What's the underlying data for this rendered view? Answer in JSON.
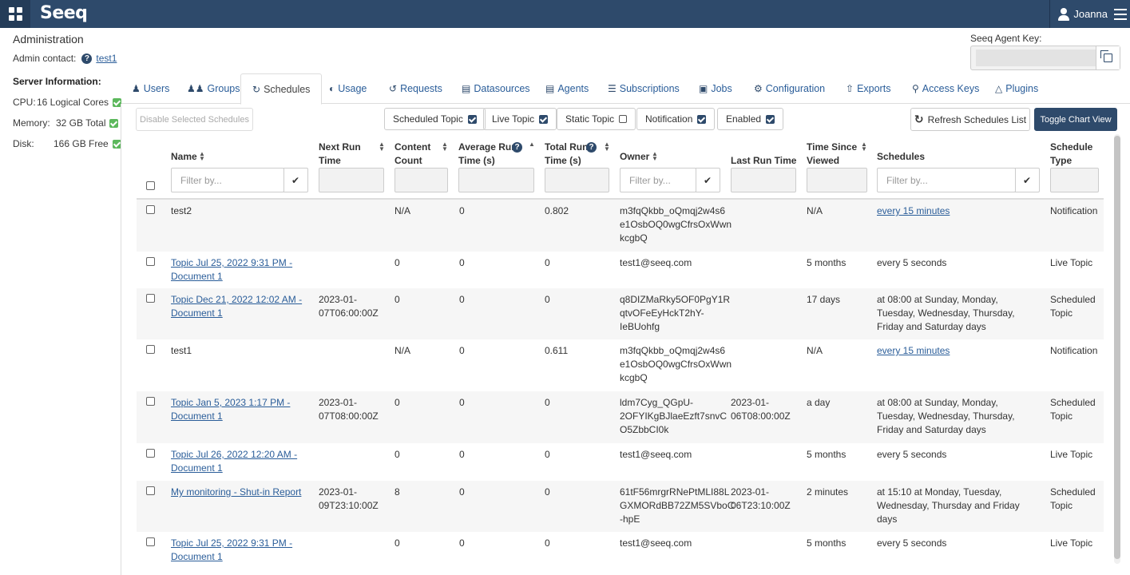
{
  "header": {
    "app_name": "Seeq",
    "user_name": "Joanna"
  },
  "admin": {
    "title": "Administration",
    "contact_label": "Admin contact:",
    "contact_link": "test1"
  },
  "server_info": {
    "title": "Server Information:",
    "cpu_label": "CPU:",
    "cpu_value": "16 Logical Cores",
    "memory_label": "Memory:",
    "memory_value": "32 GB Total",
    "disk_label": "Disk:",
    "disk_value": "166 GB Free"
  },
  "agent_key": {
    "label": "Seeq Agent Key:",
    "value": ""
  },
  "tabs": [
    {
      "label": "Users",
      "icon": "user-icon"
    },
    {
      "label": "Groups",
      "icon": "users-icon"
    },
    {
      "label": "Schedules",
      "icon": "refresh-icon"
    },
    {
      "label": "Usage",
      "icon": "dashboard-icon"
    },
    {
      "label": "Requests",
      "icon": "history-icon"
    },
    {
      "label": "Datasources",
      "icon": "database-icon"
    },
    {
      "label": "Agents",
      "icon": "server-icon"
    },
    {
      "label": "Subscriptions",
      "icon": "list-icon"
    },
    {
      "label": "Jobs",
      "icon": "briefcase-icon"
    },
    {
      "label": "Configuration",
      "icon": "gears-icon"
    },
    {
      "label": "Exports",
      "icon": "export-icon"
    },
    {
      "label": "Access Keys",
      "icon": "key-icon"
    },
    {
      "label": "Plugins",
      "icon": "flask-icon"
    }
  ],
  "toolbar": {
    "disable_label": "Disable Selected Schedules",
    "filters": [
      {
        "label": "Scheduled Topic",
        "checked": true
      },
      {
        "label": "Live Topic",
        "checked": true
      },
      {
        "label": "Static Topic",
        "checked": false
      },
      {
        "label": "Notification",
        "checked": true
      },
      {
        "label": "Enabled",
        "checked": true
      }
    ],
    "refresh_label": "Refresh Schedules List",
    "toggle_label": "Toggle Chart View"
  },
  "columns": {
    "name": "Name",
    "next_run_1": "Next Run",
    "next_run_2": "Time",
    "content_1": "Content",
    "content_2": "Count",
    "avg_1": "Average Run",
    "avg_2": "Time (s)",
    "total_1": "Total Run",
    "total_2": "Time (s)",
    "owner": "Owner",
    "last_run": "Last Run Time",
    "since_1": "Time Since",
    "since_2": "Viewed",
    "schedules": "Schedules",
    "type_1": "Schedule",
    "type_2": "Type",
    "filter_placeholder": "Filter by..."
  },
  "rows": [
    {
      "name": "test2",
      "name_link": false,
      "next_run": "",
      "content": "N/A",
      "avg": "0",
      "total": "0.802",
      "owner": "m3fqQkbb_oQmqj2w4s6 e1OsbOQ0wgCfrsOxWwn kcgbQ",
      "last_run": "",
      "since": "N/A",
      "schedule": "every 15 minutes",
      "schedule_link": true,
      "type": "Notification"
    },
    {
      "name": "Topic Jul 25, 2022 9:31 PM - Document 1",
      "name_link": true,
      "next_run": "",
      "content": "0",
      "avg": "0",
      "total": "0",
      "owner": "test1@seeq.com",
      "last_run": "",
      "since": "5 months",
      "schedule": "every 5 seconds",
      "schedule_link": false,
      "type": "Live Topic"
    },
    {
      "name": "Topic Dec 21, 2022 12:02 AM - Document 1",
      "name_link": true,
      "next_run": "2023-01-07T06:00:00Z",
      "content": "0",
      "avg": "0",
      "total": "0",
      "owner": "q8DIZMaRky5OF0PgY1R qtvOFeEyHckT2hY-IeBUohfg",
      "last_run": "",
      "since": "17 days",
      "schedule": "at 08:00 at Sunday, Monday, Tuesday, Wednesday, Thursday, Friday and Saturday days",
      "schedule_link": false,
      "type": "Scheduled Topic"
    },
    {
      "name": "test1",
      "name_link": false,
      "next_run": "",
      "content": "N/A",
      "avg": "0",
      "total": "0.611",
      "owner": "m3fqQkbb_oQmqj2w4s6 e1OsbOQ0wgCfrsOxWwn kcgbQ",
      "last_run": "",
      "since": "N/A",
      "schedule": "every 15 minutes",
      "schedule_link": true,
      "type": "Notification"
    },
    {
      "name": "Topic Jan 5, 2023 1:17 PM - Document 1",
      "name_link": true,
      "next_run": "2023-01-07T08:00:00Z",
      "content": "0",
      "avg": "0",
      "total": "0",
      "owner": "ldm7Cyg_QGpU-2OFYIKgBJlaeEzft7snvC O5ZbbCI0k",
      "last_run": "2023-01-06T08:00:00Z",
      "since": "a day",
      "schedule": "at 08:00 at Sunday, Monday, Tuesday, Wednesday, Thursday, Friday and Saturday days",
      "schedule_link": false,
      "type": "Scheduled Topic"
    },
    {
      "name": "Topic Jul 26, 2022 12:20 AM - Document 1",
      "name_link": true,
      "next_run": "",
      "content": "0",
      "avg": "0",
      "total": "0",
      "owner": "test1@seeq.com",
      "last_run": "",
      "since": "5 months",
      "schedule": "every 5 seconds",
      "schedule_link": false,
      "type": "Live Topic"
    },
    {
      "name": "My monitoring - Shut-in Report",
      "name_link": true,
      "next_run": "2023-01-09T23:10:00Z",
      "content": "8",
      "avg": "0",
      "total": "0",
      "owner": "61tF56mrgrRNePtMLI88L GXMORdBB72ZM5SVboC -hpE",
      "last_run": "2023-01-06T23:10:00Z",
      "since": "2 minutes",
      "schedule": "at 15:10 at Monday, Tuesday, Wednesday, Thursday and Friday days",
      "schedule_link": false,
      "type": "Scheduled Topic"
    },
    {
      "name": "Topic Jul 25, 2022 9:31 PM - Document 1",
      "name_link": true,
      "next_run": "",
      "content": "0",
      "avg": "0",
      "total": "0",
      "owner": "test1@seeq.com",
      "last_run": "",
      "since": "5 months",
      "schedule": "every 5 seconds",
      "schedule_link": false,
      "type": "Live Topic"
    }
  ]
}
